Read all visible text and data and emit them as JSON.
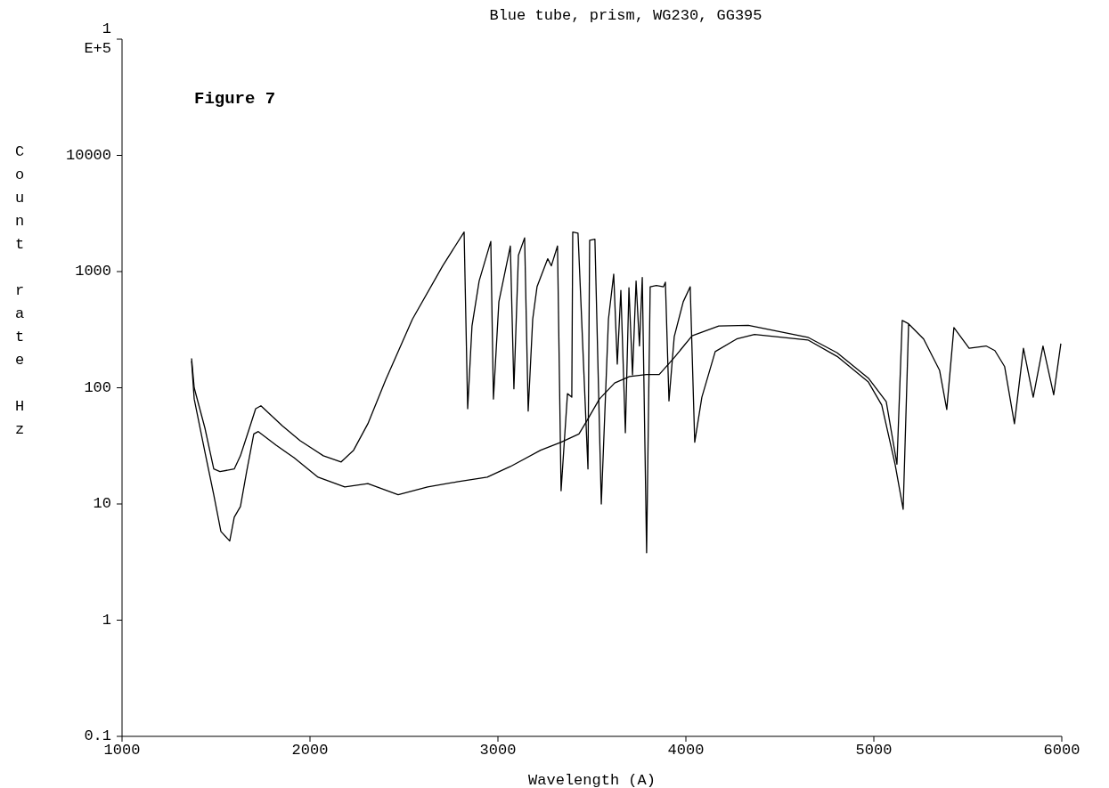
{
  "chart_data": {
    "type": "line",
    "title": "Blue tube, prism, WG230, GG395",
    "xlabel": "Wavelength (A)",
    "ylabel": "Count rate Hz",
    "annotations": [
      "Figure 7"
    ],
    "log": "y",
    "marker": "none",
    "line_style": "solid",
    "xlim": [
      1000,
      6000
    ],
    "xticks": [
      1000,
      2000,
      3000,
      4000,
      5000,
      6000
    ],
    "ylim": [
      0.1,
      100000
    ],
    "yticks": [
      0.1,
      1,
      10,
      100,
      1000,
      10000,
      {
        "value": 100000,
        "label": "1 E+5"
      }
    ],
    "series": [
      {
        "color": "#000000",
        "x": [
          1370,
          1384,
          1441,
          1488,
          1521,
          1597,
          1630,
          1678,
          1711,
          1739,
          1853,
          1948,
          2071,
          2166,
          2232,
          2308,
          2403,
          2545,
          2706,
          2820,
          2839,
          2862,
          2900,
          2962,
          2976,
          3005,
          3066,
          3085,
          3109,
          3142,
          3161,
          3185,
          3208,
          3265,
          3284,
          3317,
          3336,
          3370,
          3393,
          3398,
          3426,
          3479,
          3488,
          3516,
          3550,
          3588,
          3616,
          3635,
          3654,
          3678,
          3697,
          3716,
          3735,
          3753,
          3768,
          3791,
          3810,
          3843,
          3881,
          3891,
          3910,
          3938,
          3986,
          4023,
          4047,
          4085,
          4156,
          4270,
          4365,
          4649,
          4805,
          4971,
          5042,
          5113,
          5156,
          5185,
          5265,
          5350,
          5388,
          5426,
          5507,
          5597,
          5644,
          5696,
          5748,
          5796,
          5848,
          5900,
          5957,
          5995
        ],
        "values": [
          179,
          100,
          45,
          20,
          19,
          20,
          26,
          45,
          66,
          70,
          47,
          35,
          26,
          23,
          29,
          49,
          117,
          389,
          1120,
          2190,
          66,
          340,
          830,
          1820,
          80,
          550,
          1660,
          98,
          1380,
          1950,
          63,
          389,
          740,
          1290,
          1120,
          1660,
          13,
          89,
          83,
          2190,
          2140,
          20,
          1860,
          1900,
          10,
          389,
          950,
          160,
          690,
          41,
          725,
          129,
          830,
          229,
          890,
          3.8,
          740,
          760,
          740,
          810,
          77,
          275,
          550,
          740,
          34,
          83,
          205,
          263,
          288,
          258,
          186,
          112,
          71,
          22,
          9,
          355,
          263,
          141,
          65,
          330,
          219,
          229,
          209,
          152,
          49,
          219,
          83,
          229,
          87,
          240
        ]
      },
      {
        "color": "#000000",
        "x": [
          1370,
          1384,
          1441,
          1488,
          1526,
          1573,
          1597,
          1630,
          1663,
          1701,
          1725,
          1820,
          1915,
          2043,
          2185,
          2308,
          2469,
          2626,
          2782,
          2943,
          3066,
          3227,
          3336,
          3431,
          3464,
          3540,
          3621,
          3700,
          3790,
          3858,
          3938,
          4033,
          4175,
          4332,
          4649,
          4805,
          4971,
          5066,
          5123,
          5151,
          5185
        ],
        "values": [
          170,
          80,
          28,
          12,
          5.8,
          4.8,
          7.7,
          9.5,
          19,
          40,
          42,
          32,
          25,
          17,
          14,
          15,
          12,
          14,
          15.5,
          17,
          21,
          29,
          34,
          40,
          49,
          80,
          110,
          125,
          130,
          130,
          182,
          280,
          340,
          345,
          272,
          200,
          121,
          76,
          22,
          380,
          355
        ]
      }
    ]
  }
}
